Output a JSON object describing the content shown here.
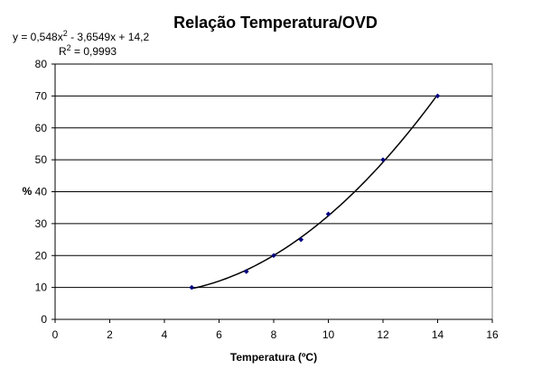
{
  "chart_data": {
    "type": "scatter",
    "title": "Relação Temperatura/OVD",
    "xlabel": "Temperatura (ºC)",
    "ylabel": "%",
    "xlim": [
      0,
      16
    ],
    "ylim": [
      0,
      80
    ],
    "xticks": [
      0,
      2,
      4,
      6,
      8,
      10,
      12,
      14,
      16
    ],
    "yticks": [
      0,
      10,
      20,
      30,
      40,
      50,
      60,
      70,
      80
    ],
    "grid": "horizontal",
    "legend": "none",
    "series": [
      {
        "x": [
          5,
          7,
          8,
          9,
          10,
          12,
          14
        ],
        "y": [
          10,
          15,
          20,
          25,
          33,
          50,
          70
        ],
        "marker_color": "#000080"
      }
    ],
    "trendline": {
      "type": "polynomial",
      "coefficients": [
        0.548,
        -3.6549,
        14.2
      ],
      "x_range": [
        5,
        14
      ],
      "equation_prefix": "y = 0,548x",
      "equation_exp": "2",
      "equation_suffix": " - 3,6549x + 14,2",
      "r2_prefix": "R",
      "r2_exp": "2",
      "r2_suffix": " = 0,9993"
    }
  }
}
